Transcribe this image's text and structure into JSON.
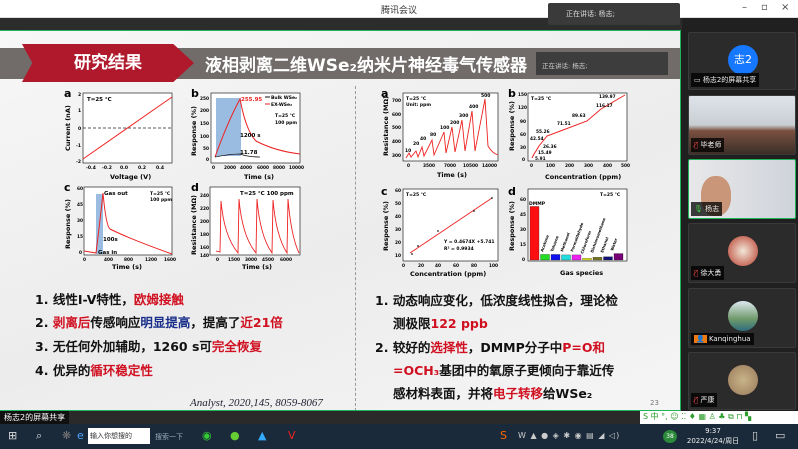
{
  "window": {
    "title": "腾讯会议",
    "minimize": "–",
    "restore": "▫",
    "close": "×"
  },
  "speaking_popup": "正在讲话: 杨志;",
  "slide": {
    "section": "研究结果",
    "title": "液相剥离二维WSe₂纳米片神经毒气传感器",
    "speaking_overlay": "正在讲话: 杨志;",
    "left_points": [
      {
        "n": "1. ",
        "a": "线性I-V特性，",
        "b": "欧姆接触"
      },
      {
        "n": "2. ",
        "r1": "剥离后",
        "a": "传感响应",
        "bl": "明显提高",
        "c": "，提高了",
        "r2": "近21倍"
      },
      {
        "n": "3. ",
        "a": "无任何外加辅助，1260 s可",
        "b": "完全恢复"
      },
      {
        "n": "4. ",
        "a": "优异的",
        "b": "循环稳定性"
      }
    ],
    "right_points": [
      {
        "n": "1. ",
        "a": "动态响应变化，低浓度线性拟合，理论检",
        "a2": "测极限",
        "b": "122 ppb"
      },
      {
        "n": "2. ",
        "a": "较好的",
        "b": "选择性",
        "c": "，DMMP分子中",
        "d": "P=O和",
        "e": "=OCH₃",
        "f": "基团中的氧原子更倾向于靠近传",
        "g": "感材料表面，并将",
        "h": "电子转移",
        "i": "给WSe₂"
      }
    ],
    "citation": "Analyst, 2020,145, 8059-8067",
    "page_number": "23",
    "figures": {
      "la": {
        "letter": "a",
        "note": "T=25 °C",
        "xlabel": "Voltage (V)",
        "ylabel": "Current (nA)",
        "xticks": [
          "-0.4",
          "-0.2",
          "0.0",
          "0.2",
          "0.4"
        ],
        "yticks": [
          "2",
          "1",
          "0",
          "-1",
          "-2"
        ]
      },
      "lb": {
        "letter": "b",
        "peak": "255.95",
        "bulk": "11.78",
        "time": "1200 s",
        "legend": [
          "Bulk WSe₂",
          "EX-WSe₂"
        ],
        "cond": [
          "T=25 °C",
          "100 ppm"
        ],
        "xlabel": "Time (s)",
        "ylabel": "Response (%)",
        "xticks": [
          "0",
          "2000",
          "4000",
          "6000",
          "8000",
          "10000"
        ],
        "yticks": [
          "250",
          "200",
          "150",
          "100",
          "50",
          "0"
        ]
      },
      "lc": {
        "letter": "c",
        "gas_out": "Gas out",
        "gas_in": "Gas in",
        "dt": "100s",
        "cond": [
          "T=25 °C",
          "100 ppm"
        ],
        "xlabel": "Time (s)",
        "ylabel": "Response (%)",
        "xticks": [
          "0",
          "400",
          "800",
          "1200",
          "1600"
        ],
        "yticks": [
          "60",
          "45",
          "30",
          "15",
          "0"
        ]
      },
      "ld": {
        "letter": "d",
        "note": "T=25 °C 100 ppm",
        "xlabel": "Time (s)",
        "ylabel": "Resistance (MΩ)",
        "xticks": [
          "0",
          "1500",
          "3000",
          "4500",
          "6000"
        ],
        "yticks": [
          "240",
          "220",
          "200",
          "180",
          "160",
          "140"
        ]
      },
      "ra": {
        "letter": "a",
        "note": [
          "T=25 °C",
          "Unit: ppm"
        ],
        "labels": [
          "10",
          "20",
          "40",
          "80",
          "100",
          "200",
          "300",
          "400",
          "500"
        ],
        "xlabel": "Time (s)",
        "ylabel": "Resistance (MΩ)",
        "xticks": [
          "0",
          "3500",
          "7000",
          "10500",
          "14000"
        ],
        "yticks": [
          "700",
          "600",
          "500",
          "400",
          "300"
        ]
      },
      "rb": {
        "letter": "b",
        "note": "T=25 °C",
        "labels": [
          "5.91",
          "15.49",
          "26.36",
          "42.54",
          "55.26",
          "71.51",
          "89.63",
          "116.17",
          "139.97"
        ],
        "xlabel": "Concentration (ppm)",
        "ylabel": "Response (%)",
        "xticks": [
          "0",
          "100",
          "200",
          "300",
          "400",
          "500"
        ],
        "yticks": [
          "150",
          "120",
          "90",
          "60",
          "30",
          "0"
        ]
      },
      "rc": {
        "letter": "c",
        "note": "T=25 °C",
        "eq": "Y = 0.4674X +5.741",
        "r2": "R² = 0.9934",
        "xlabel": "Concentration (ppm)",
        "ylabel": "Response (%)",
        "xticks": [
          "0",
          "20",
          "40",
          "60",
          "80",
          "100"
        ],
        "yticks": [
          "60",
          "50",
          "40",
          "30",
          "20",
          "10"
        ]
      },
      "rd": {
        "letter": "d",
        "note": "T=25 °C",
        "xlabel": "Gas species",
        "ylabel": "Response (%)",
        "yticks": [
          "60",
          "45",
          "30",
          "15",
          "0"
        ],
        "gases": [
          "DMMP",
          "Acetone",
          "Toluene",
          "Methanol",
          "Formaldehyde",
          "Chloroform",
          "Dichloromethane",
          "Ethanol",
          "Water"
        ],
        "values": [
          58,
          6,
          6,
          5.5,
          5.5,
          2,
          3,
          3.5,
          7
        ],
        "colors": [
          "#ff1010",
          "#22dd22",
          "#1010ee",
          "#22dddd",
          "#ee22ee",
          "#eeee22",
          "#777722",
          "#111177",
          "#770077"
        ]
      }
    }
  },
  "participants": [
    {
      "name": "杨志2的屏幕共享",
      "avatar_text": "志2",
      "avatar_color": "#1677ff",
      "icon": "screen-share-icon"
    },
    {
      "name": "毕老师",
      "icon": "mic-muted-icon"
    },
    {
      "name": "杨志",
      "icon": "mic-icon"
    },
    {
      "name": "徐大勇",
      "icon": "mic-muted-icon"
    },
    {
      "name": "Kanqinghua",
      "icon": "user-icon"
    },
    {
      "name": "严康",
      "icon": "mic-muted-icon"
    }
  ],
  "share_label": "杨志2的屏幕共享",
  "ime": "S 中 °, ☺ ⁚⁚ ♦ ▦ ♙ ♣ ⧉ ⊓ ▚",
  "taskbar": {
    "search_placeholder": "输入你想搜的",
    "search_button": "搜索一下",
    "time": "9:37",
    "date": "2022/4/24/周日",
    "badge": "38"
  }
}
